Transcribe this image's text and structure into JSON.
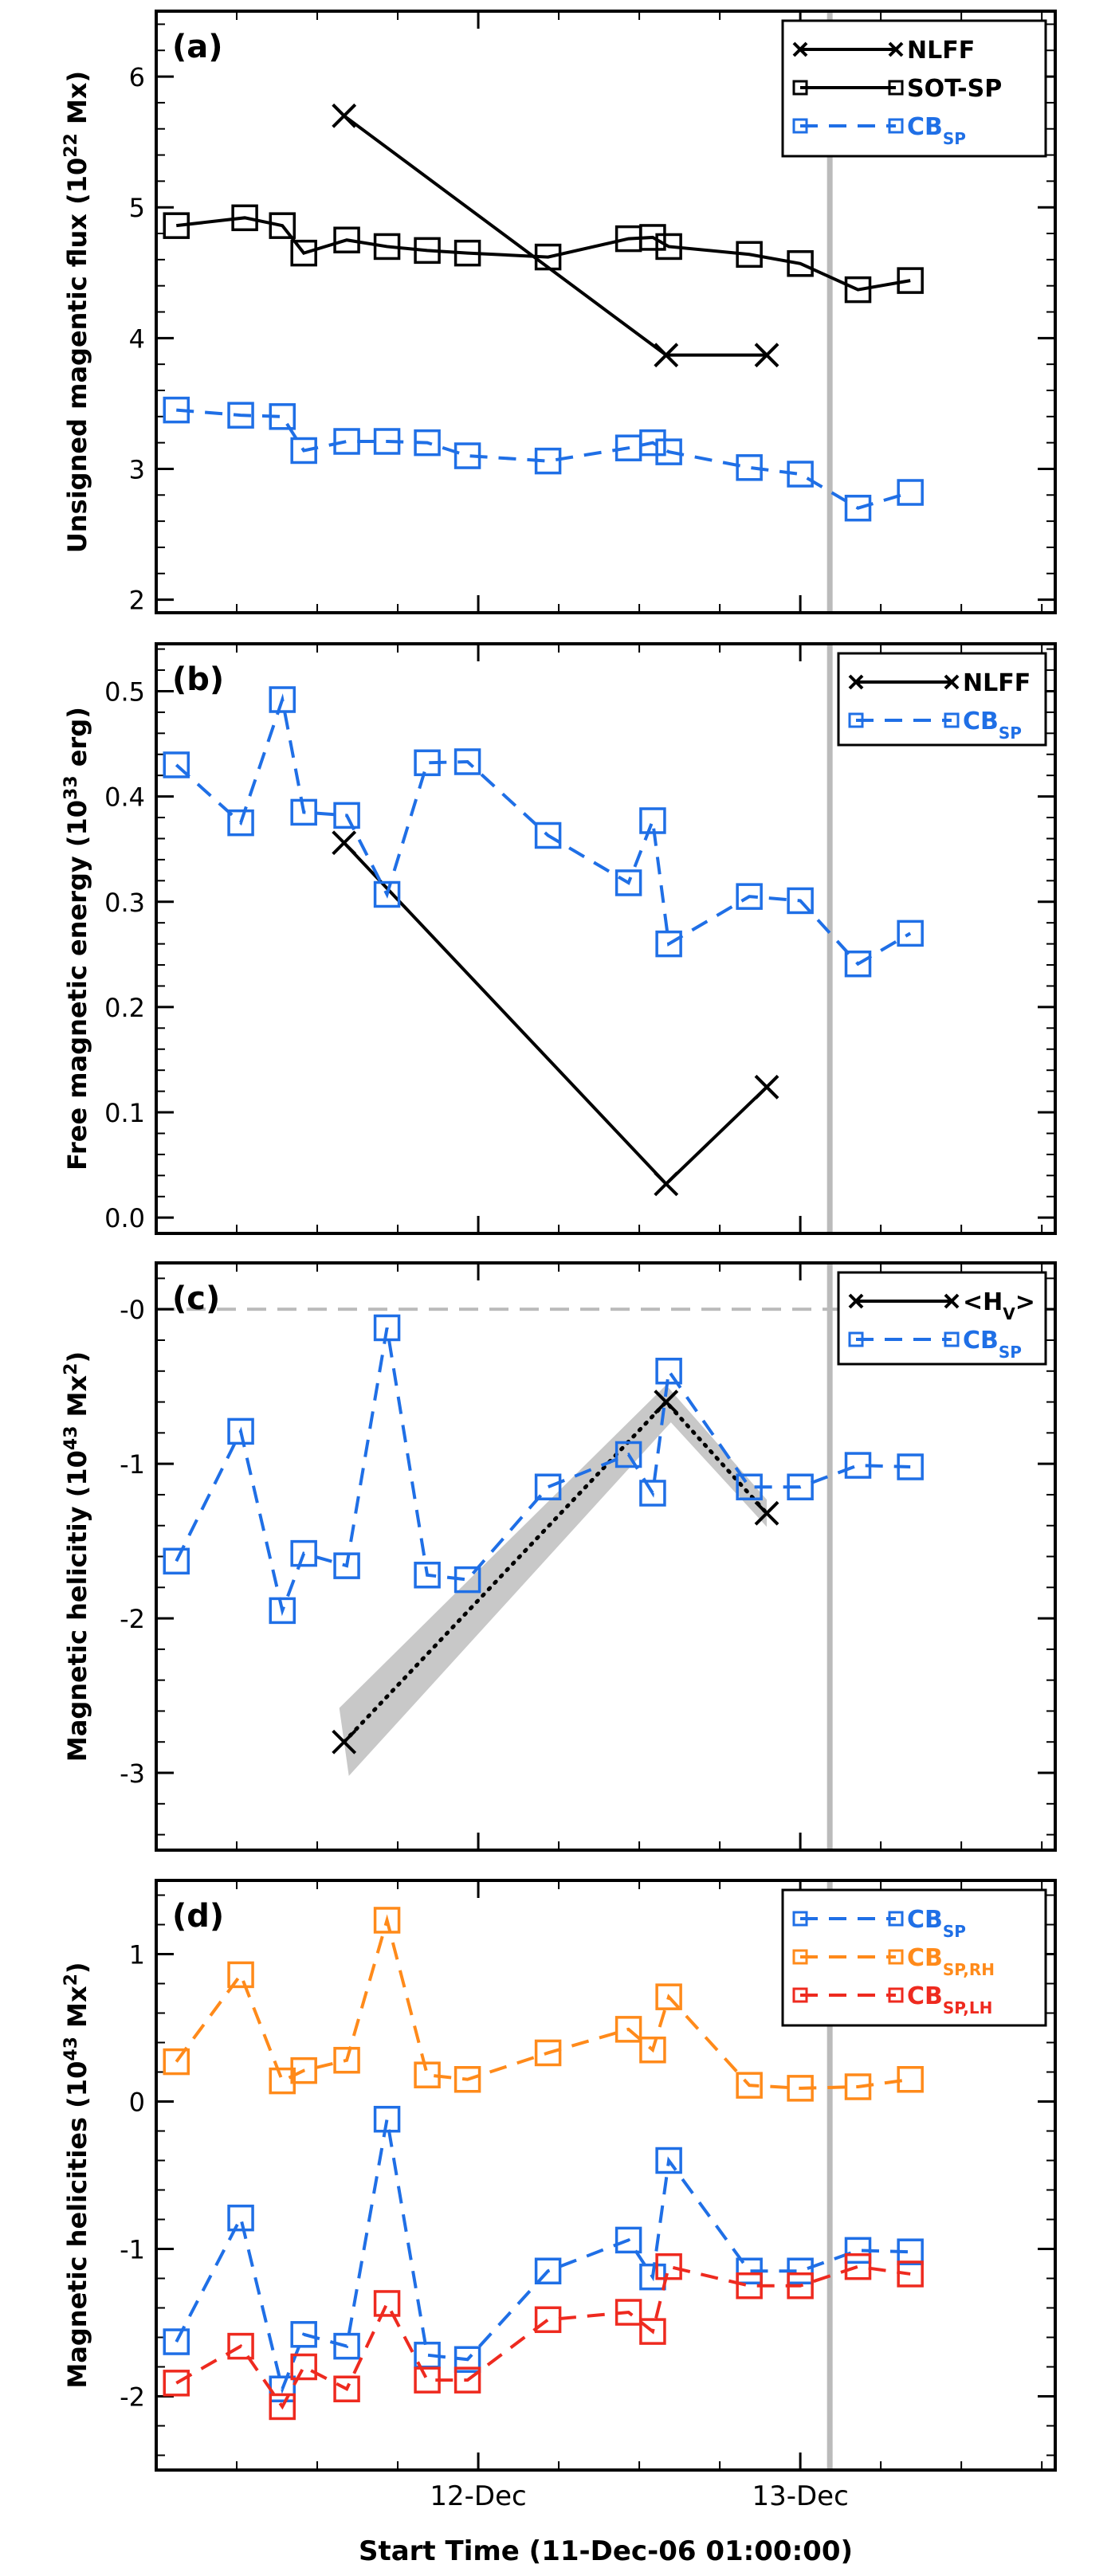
{
  "figure": {
    "xlabel": "Start Time (11-Dec-06 01:00:00)",
    "xticks": [
      {
        "label": "12-Dec",
        "hours": 23
      },
      {
        "label": "13-Dec",
        "hours": 47
      }
    ],
    "vline_hours": 49.2
  },
  "colors": {
    "black": "#000000",
    "blue": "#1f6fe6",
    "orange": "#ff8a1a",
    "red": "#ee2a1f",
    "gray": "#bbbbbb"
  },
  "chart_data": [
    {
      "type": "line",
      "panel_label": "(a)",
      "ylabel": "Unsigned magentic flux (10^22 Mx)",
      "ylim": [
        1.9,
        6.5
      ],
      "yticks": [
        2,
        3,
        4,
        5,
        6
      ],
      "xlim": [
        -1,
        66
      ],
      "legend_position": "top-right",
      "series": [
        {
          "name": "NLFF",
          "color": "#000000",
          "style": "solid",
          "marker": "x",
          "x": [
            13,
            37,
            44.5
          ],
          "y": [
            5.7,
            3.87,
            3.87
          ]
        },
        {
          "name": "SOT-SP",
          "color": "#000000",
          "style": "solid",
          "marker": "square",
          "x": [
            0.5,
            5.6,
            8.4,
            10,
            13.2,
            16.2,
            19.2,
            22.2,
            28.2,
            34.2,
            36,
            37.2,
            43.2,
            47,
            51.3,
            55.2
          ],
          "y": [
            4.86,
            4.92,
            4.86,
            4.65,
            4.75,
            4.7,
            4.67,
            4.65,
            4.62,
            4.76,
            4.77,
            4.7,
            4.64,
            4.57,
            4.37,
            4.44
          ]
        },
        {
          "name": "CB",
          "sub": "SP",
          "color": "#1f6fe6",
          "style": "dashed",
          "marker": "square",
          "x": [
            0.5,
            5.3,
            8.4,
            10,
            13.2,
            16.2,
            19.2,
            22.2,
            28.2,
            34.2,
            36,
            37.2,
            43.2,
            47,
            51.3,
            55.2
          ],
          "y": [
            3.45,
            3.41,
            3.4,
            3.14,
            3.21,
            3.21,
            3.2,
            3.1,
            3.06,
            3.16,
            3.2,
            3.13,
            3.01,
            2.96,
            2.7,
            2.82
          ]
        }
      ]
    },
    {
      "type": "line",
      "panel_label": "(b)",
      "ylabel": "Free magnetic energy (10^33 erg)",
      "ylim": [
        -0.015,
        0.545
      ],
      "yticks": [
        0.0,
        0.1,
        0.2,
        0.3,
        0.4,
        0.5
      ],
      "ytick_labels": [
        "0.0",
        "0.1",
        "0.2",
        "0.3",
        "0.4",
        "0.5"
      ],
      "xlim": [
        -1,
        66
      ],
      "legend_position": "top-right",
      "series": [
        {
          "name": "NLFF",
          "color": "#000000",
          "style": "solid",
          "marker": "x",
          "x": [
            13,
            37,
            44.5
          ],
          "y": [
            0.356,
            0.032,
            0.124
          ]
        },
        {
          "name": "CB",
          "sub": "SP",
          "color": "#1f6fe6",
          "style": "dashed",
          "marker": "square",
          "x": [
            0.5,
            5.3,
            8.4,
            10,
            13.2,
            16.2,
            19.2,
            22.2,
            28.2,
            34.2,
            36,
            37.2,
            43.2,
            47,
            51.3,
            55.2
          ],
          "y": [
            0.43,
            0.375,
            0.492,
            0.385,
            0.382,
            0.307,
            0.432,
            0.433,
            0.363,
            0.318,
            0.377,
            0.26,
            0.305,
            0.301,
            0.241,
            0.27
          ]
        }
      ]
    },
    {
      "type": "line",
      "panel_label": "(c)",
      "ylabel": "Magnetic helicitiy (10^43 Mx^2)",
      "ylim": [
        -3.5,
        0.3
      ],
      "yticks": [
        -3,
        -2,
        -1,
        0
      ],
      "ytick_labels": [
        "-3",
        "-2",
        "-1",
        "-0"
      ],
      "zero_line": 0,
      "xlim": [
        -1,
        66
      ],
      "legend_position": "top-right",
      "series": [
        {
          "name": "<H_V>",
          "color": "#000000",
          "style": "solid",
          "marker": "x",
          "x": [
            13,
            37,
            44.5
          ],
          "y": [
            -2.8,
            -0.6,
            -1.32
          ],
          "band_width": 0.22,
          "fit_line": true
        },
        {
          "name": "CB",
          "sub": "SP",
          "color": "#1f6fe6",
          "style": "dashed",
          "marker": "square",
          "x": [
            0.5,
            5.3,
            8.4,
            10,
            13.2,
            16.2,
            19.2,
            22.2,
            28.2,
            34.2,
            36,
            37.2,
            43.2,
            47,
            51.3,
            55.2
          ],
          "y": [
            -1.63,
            -0.79,
            -1.95,
            -1.58,
            -1.66,
            -0.12,
            -1.72,
            -1.75,
            -1.15,
            -0.94,
            -1.19,
            -0.4,
            -1.15,
            -1.15,
            -1.01,
            -1.02
          ]
        }
      ]
    },
    {
      "type": "line",
      "panel_label": "(d)",
      "ylabel": "Magnetic helicities (10^43 Mx^2)",
      "ylim": [
        -2.5,
        1.5
      ],
      "yticks": [
        -2,
        -1,
        0,
        1
      ],
      "xlim": [
        -1,
        66
      ],
      "legend_position": "top-right",
      "series": [
        {
          "name": "CB",
          "sub": "SP",
          "color": "#1f6fe6",
          "style": "dashed",
          "marker": "square",
          "x": [
            0.5,
            5.3,
            8.4,
            10,
            13.2,
            16.2,
            19.2,
            22.2,
            28.2,
            34.2,
            36,
            37.2,
            43.2,
            47,
            51.3,
            55.2
          ],
          "y": [
            -1.63,
            -0.79,
            -1.95,
            -1.58,
            -1.66,
            -0.12,
            -1.72,
            -1.75,
            -1.15,
            -0.94,
            -1.19,
            -0.4,
            -1.15,
            -1.15,
            -1.01,
            -1.02
          ]
        },
        {
          "name": "CB",
          "sub": "SP,RH",
          "color": "#ff8a1a",
          "style": "dashed",
          "marker": "square",
          "x": [
            0.5,
            5.3,
            8.4,
            10,
            13.2,
            16.2,
            19.2,
            22.2,
            28.2,
            34.2,
            36,
            37.2,
            43.2,
            47,
            51.3,
            55.2
          ],
          "y": [
            0.27,
            0.86,
            0.14,
            0.21,
            0.28,
            1.23,
            0.18,
            0.15,
            0.33,
            0.49,
            0.35,
            0.71,
            0.11,
            0.09,
            0.1,
            0.15
          ]
        },
        {
          "name": "CB",
          "sub": "SP,LH",
          "color": "#ee2a1f",
          "style": "dashed",
          "marker": "square",
          "x": [
            0.5,
            5.3,
            8.4,
            10,
            13.2,
            16.2,
            19.2,
            22.2,
            28.2,
            34.2,
            36,
            37.2,
            43.2,
            47,
            51.3,
            55.2
          ],
          "y": [
            -1.91,
            -1.66,
            -2.07,
            -1.8,
            -1.95,
            -1.37,
            -1.89,
            -1.89,
            -1.48,
            -1.43,
            -1.56,
            -1.12,
            -1.25,
            -1.25,
            -1.12,
            -1.17
          ]
        }
      ]
    }
  ]
}
